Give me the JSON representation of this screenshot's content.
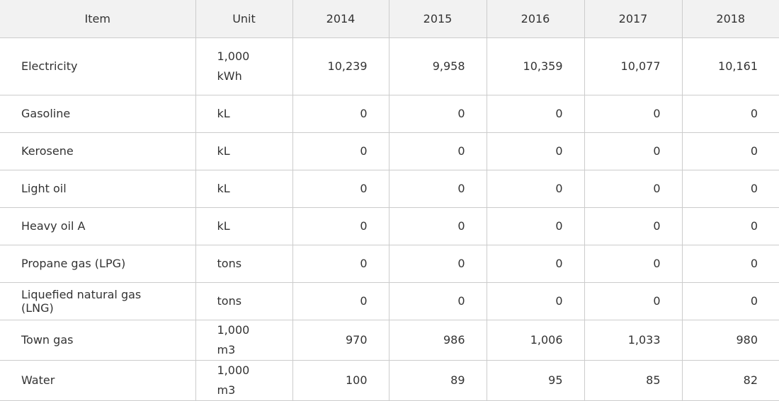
{
  "table": {
    "headers": [
      "Item",
      "Unit",
      "2014",
      "2015",
      "2016",
      "2017",
      "2018"
    ],
    "rows": [
      {
        "item": "Electricity",
        "unit": "1,000\nkWh",
        "values": [
          "10,239",
          "9,958",
          "10,359",
          "10,077",
          "10,161"
        ]
      },
      {
        "item": "Gasoline",
        "unit": "kL",
        "values": [
          "0",
          "0",
          "0",
          "0",
          "0"
        ]
      },
      {
        "item": "Kerosene",
        "unit": "kL",
        "values": [
          "0",
          "0",
          "0",
          "0",
          "0"
        ]
      },
      {
        "item": "Light oil",
        "unit": "kL",
        "values": [
          "0",
          "0",
          "0",
          "0",
          "0"
        ]
      },
      {
        "item": "Heavy oil A",
        "unit": "kL",
        "values": [
          "0",
          "0",
          "0",
          "0",
          "0"
        ]
      },
      {
        "item": "Propane gas (LPG)",
        "unit": "tons",
        "values": [
          "0",
          "0",
          "0",
          "0",
          "0"
        ]
      },
      {
        "item": "Liquefied natural gas (LNG)",
        "unit": "tons",
        "values": [
          "0",
          "0",
          "0",
          "0",
          "0"
        ]
      },
      {
        "item": "Town gas",
        "unit": "1,000 m3",
        "values": [
          "970",
          "986",
          "1,006",
          "1,033",
          "980"
        ]
      },
      {
        "item": "Water",
        "unit": "1,000 m3",
        "values": [
          "100",
          "89",
          "95",
          "85",
          "82"
        ]
      }
    ]
  }
}
